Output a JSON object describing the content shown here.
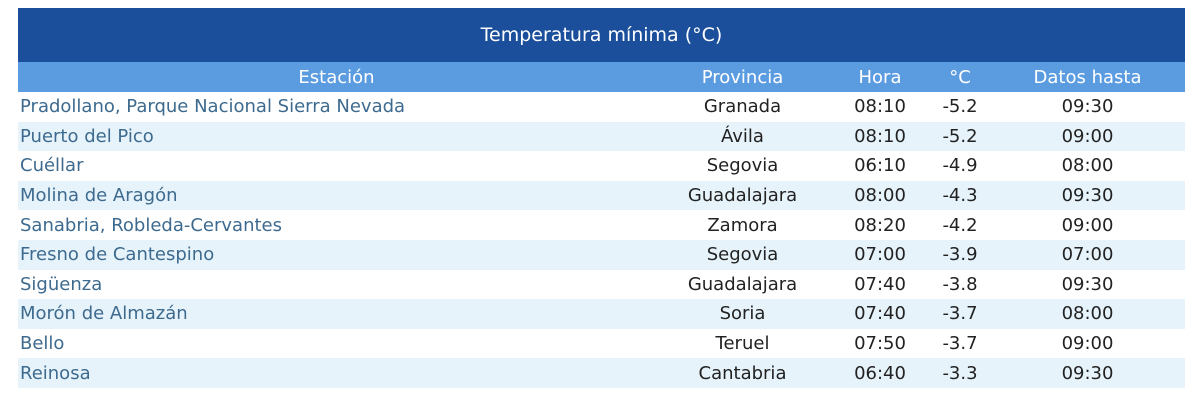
{
  "table": {
    "title": "Temperatura mínima (°C)",
    "header": [
      "Estación",
      "Provincia",
      "Hora",
      "°C",
      "Datos hasta"
    ],
    "rows": [
      [
        "Pradollano, Parque Nacional Sierra Nevada",
        "Granada",
        "08:10",
        "-5.2",
        "09:30"
      ],
      [
        "Puerto del Pico",
        "Ávila",
        "08:10",
        "-5.2",
        "09:00"
      ],
      [
        "Cuéllar",
        "Segovia",
        "06:10",
        "-4.9",
        "08:00"
      ],
      [
        "Molina de Aragón",
        "Guadalajara",
        "08:00",
        "-4.3",
        "09:30"
      ],
      [
        "Sanabria, Robleda-Cervantes",
        "Zamora",
        "08:20",
        "-4.2",
        "09:00"
      ],
      [
        "Fresno de Cantespino",
        "Segovia",
        "07:00",
        "-3.9",
        "07:00"
      ],
      [
        "Sigüenza",
        "Guadalajara",
        "07:40",
        "-3.8",
        "09:30"
      ],
      [
        "Morón de Almazán",
        "Soria",
        "07:40",
        "-3.7",
        "08:00"
      ],
      [
        "Bello",
        "Teruel",
        "07:50",
        "-3.7",
        "09:00"
      ],
      [
        "Reinosa",
        "Cantabria",
        "06:40",
        "-3.3",
        "09:30"
      ]
    ]
  }
}
